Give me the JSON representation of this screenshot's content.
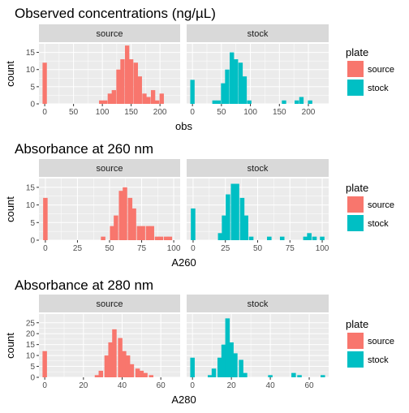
{
  "colors": {
    "source": "#F8766D",
    "stock": "#00BFC4",
    "panel_bg": "#EBEBEB",
    "grid_major": "#FFFFFF",
    "strip_bg": "#D9D9D9",
    "axis_text": "#4D4D4D",
    "title_text": "#000000"
  },
  "chart_data": [
    {
      "type": "bar",
      "title": "Observed concentrations (ng/µL)",
      "xlabel": "obs",
      "ylabel": "count",
      "legend": {
        "title": "plate",
        "entries": [
          "source",
          "stock"
        ],
        "placement": "right"
      },
      "facets": [
        "source",
        "stock"
      ],
      "x_ticks": [
        0,
        50,
        100,
        150,
        200
      ],
      "xlim": [
        -10,
        235
      ],
      "y_ticks": [
        0,
        5,
        10,
        15
      ],
      "ylim": [
        0,
        17.5
      ],
      "bin_width": 7.5,
      "series": [
        {
          "name": "source",
          "x": [
            0,
            98,
            105,
            113,
            120,
            128,
            135,
            143,
            150,
            158,
            165,
            173,
            180,
            188,
            195,
            203
          ],
          "values": [
            12,
            1,
            1,
            3,
            4,
            10,
            13,
            17,
            13,
            12,
            8,
            3,
            2,
            4,
            1,
            3
          ]
        },
        {
          "name": "stock",
          "x": [
            0,
            38,
            45,
            53,
            60,
            68,
            75,
            83,
            90,
            98,
            158,
            180,
            188,
            203
          ],
          "values": [
            7,
            1,
            1,
            6,
            10,
            15,
            13,
            12,
            8,
            1,
            1,
            1,
            2,
            1
          ]
        }
      ]
    },
    {
      "type": "bar",
      "title": "Absorbance at 260 nm",
      "xlabel": "A260",
      "ylabel": "count",
      "legend": {
        "title": "plate",
        "entries": [
          "source",
          "stock"
        ],
        "placement": "right"
      },
      "facets": [
        "source",
        "stock"
      ],
      "x_ticks": [
        0,
        25,
        50,
        75,
        100
      ],
      "xlim": [
        -5,
        105
      ],
      "y_ticks": [
        0,
        5,
        10,
        15
      ],
      "ylim": [
        0,
        17.5
      ],
      "bin_width": 3.5,
      "series": [
        {
          "name": "source",
          "x": [
            0,
            45,
            52,
            55,
            59,
            62,
            66,
            69,
            73,
            76,
            80,
            83,
            87,
            90,
            94,
            97
          ],
          "values": [
            12,
            1,
            4,
            7,
            14,
            15,
            12,
            9,
            4,
            4,
            4,
            4,
            1,
            1,
            1,
            1
          ]
        },
        {
          "name": "stock",
          "x": [
            0,
            21,
            24,
            27,
            31,
            34,
            38,
            41,
            45,
            59,
            69,
            87,
            90,
            94,
            100
          ],
          "values": [
            9,
            2,
            7,
            13,
            16,
            16,
            12,
            7,
            1,
            1,
            1,
            1,
            2,
            1,
            1
          ]
        }
      ]
    },
    {
      "type": "bar",
      "title": "Absorbance at 280 nm",
      "xlabel": "A280",
      "ylabel": "count",
      "legend": {
        "title": "plate",
        "entries": [
          "source",
          "stock"
        ],
        "placement": "right"
      },
      "facets": [
        "source",
        "stock"
      ],
      "x_ticks": [
        0,
        20,
        40,
        60
      ],
      "xlim": [
        -3,
        70
      ],
      "y_ticks": [
        0,
        5,
        10,
        15,
        20,
        25
      ],
      "ylim": [
        0,
        29
      ],
      "bin_width": 2.3,
      "series": [
        {
          "name": "source",
          "x": [
            0,
            27,
            29,
            32,
            34,
            36,
            39,
            41,
            43,
            45,
            48,
            50,
            52,
            55
          ],
          "values": [
            12,
            1,
            3,
            10,
            16,
            22,
            18,
            12,
            10,
            6,
            4,
            3,
            2,
            1
          ]
        },
        {
          "name": "stock",
          "x": [
            0,
            9,
            11,
            14,
            16,
            18,
            20,
            22,
            25,
            27,
            40,
            52,
            55,
            67
          ],
          "values": [
            9,
            1,
            4,
            9,
            15,
            27,
            16,
            11,
            8,
            2,
            1,
            2,
            1,
            1
          ]
        }
      ]
    }
  ]
}
